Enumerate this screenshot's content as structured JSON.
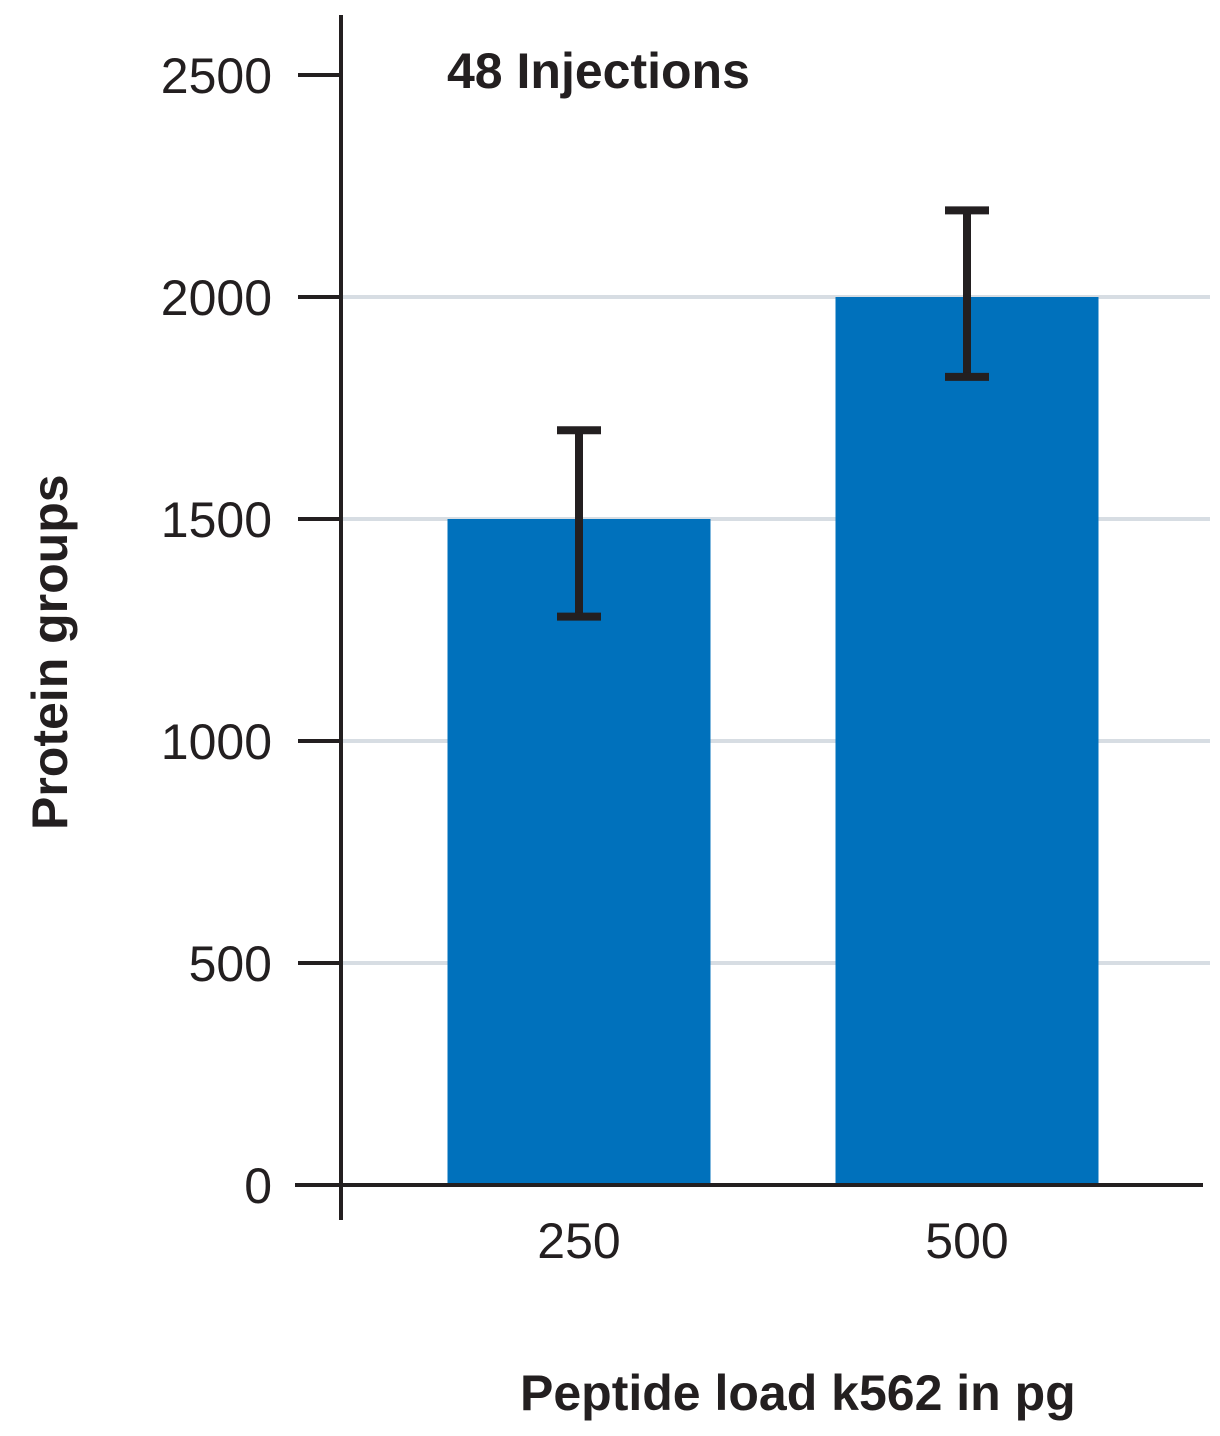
{
  "chart_data": {
    "type": "bar",
    "annotation": "48 Injections",
    "xlabel": "Peptide load k562 in pg",
    "ylabel": "Protein groups",
    "categories": [
      "250",
      "500"
    ],
    "values": [
      1500,
      2000
    ],
    "error_low": [
      1280,
      1820
    ],
    "error_high": [
      1700,
      2195
    ],
    "ylim": [
      0,
      2500
    ],
    "yticks": [
      0,
      500,
      1000,
      1500,
      2000,
      2500
    ],
    "grid": true,
    "legend": "none",
    "colors": {
      "bar": "#0071bc",
      "axis": "#231f20",
      "grid": "#d7dde3",
      "error_bar": "#231f20"
    }
  }
}
